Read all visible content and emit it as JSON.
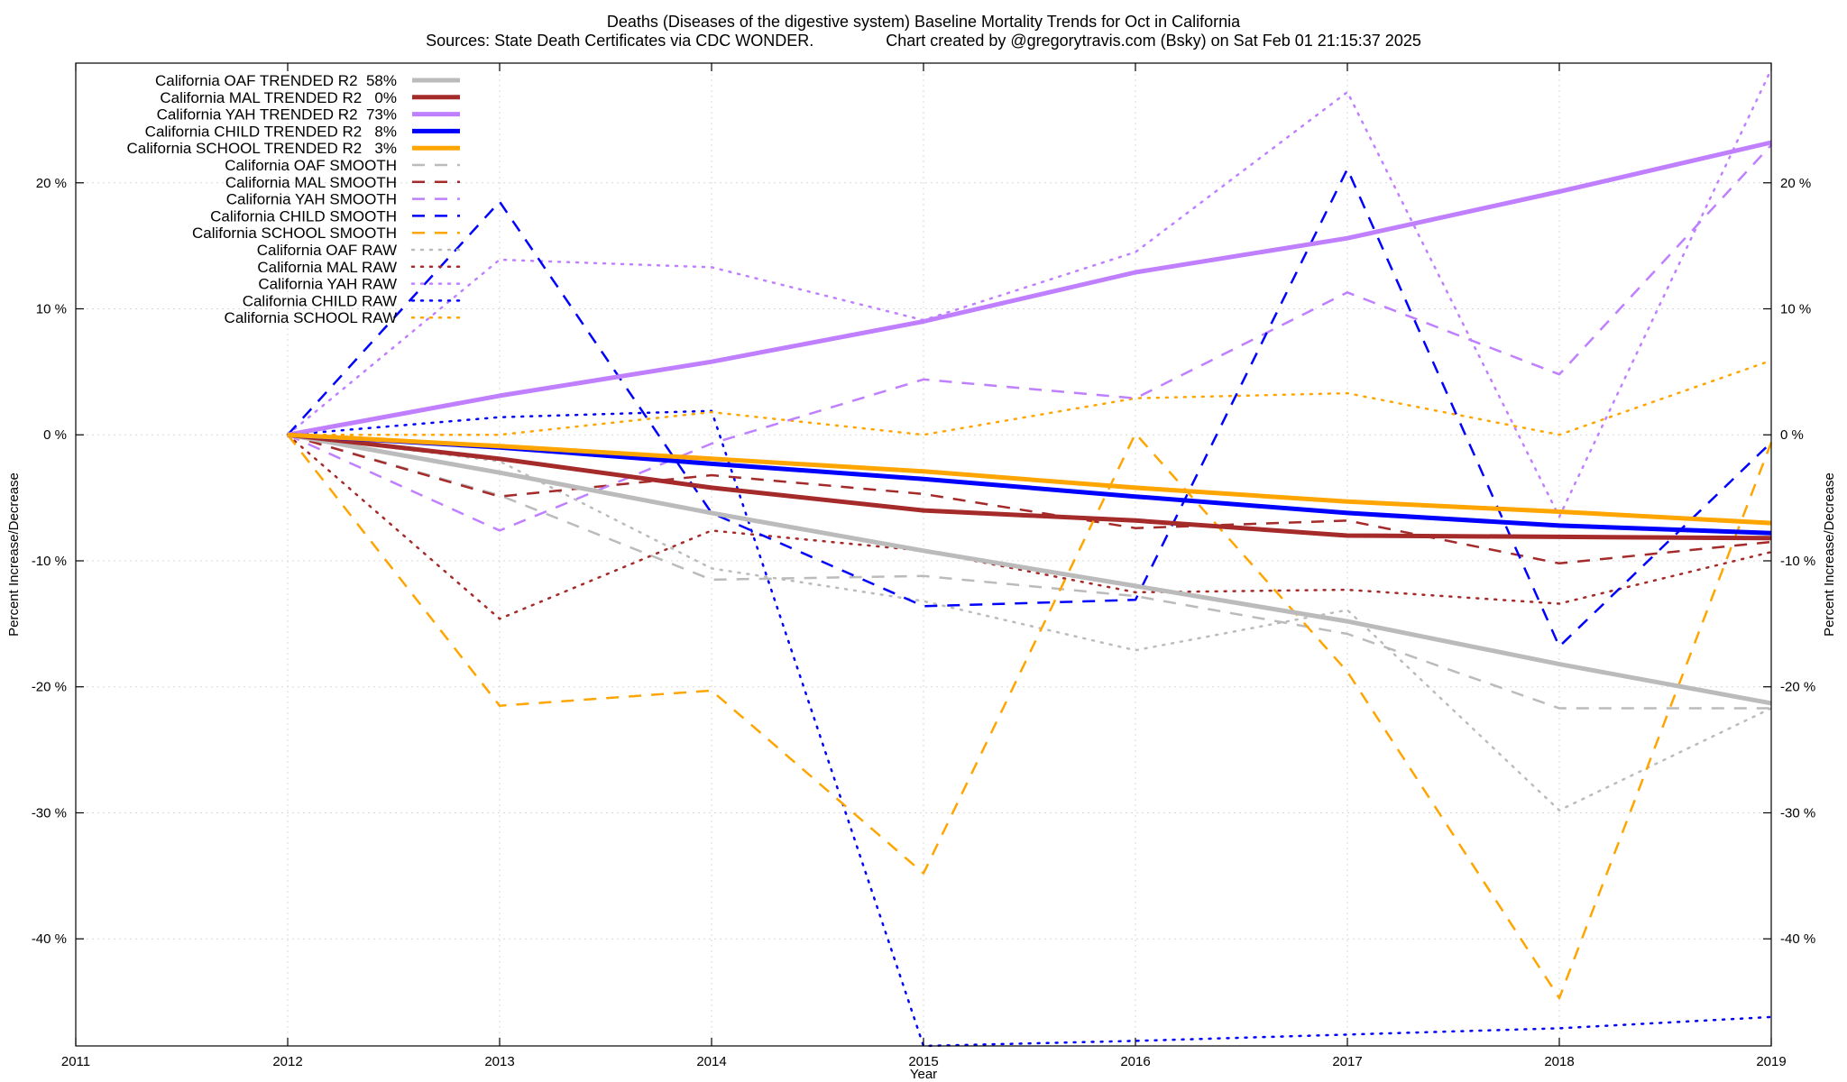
{
  "chart_data": {
    "type": "line",
    "title": "Deaths (Diseases of the digestive system)  Baseline Mortality Trends for Oct in California",
    "subtitle": "Sources: State Death Certificates via CDC WONDER.                Chart created by @gregorytravis.com (Bsky) on Sat Feb 01 21:15:37 2025",
    "xlabel": "Year",
    "ylabel": "Percent Increase/Decrease",
    "ylabel_right": "Percent Increase/Decrease",
    "xlim": [
      2011,
      2019
    ],
    "ylim": [
      -48.5,
      29.5
    ],
    "x_ticks": [
      2011,
      2012,
      2013,
      2014,
      2015,
      2016,
      2017,
      2018,
      2019
    ],
    "y_ticks": [
      {
        "value": 20,
        "label": "20 %"
      },
      {
        "value": 10,
        "label": "10 %"
      },
      {
        "value": 0,
        "label": "0 %"
      },
      {
        "value": -10,
        "label": "-10 %"
      },
      {
        "value": -20,
        "label": "-20 %"
      },
      {
        "value": -30,
        "label": "-30 %"
      },
      {
        "value": -40,
        "label": "-40 %"
      }
    ],
    "grid": true,
    "legend_position": "top-left",
    "series": [
      {
        "name": "California OAF TRENDED R2  58%",
        "color": "#bbbbbb",
        "style": "solid",
        "width": 5,
        "x": [
          2012,
          2013,
          2014,
          2015,
          2016,
          2017,
          2018,
          2019
        ],
        "y": [
          0,
          -3.0,
          -6.2,
          -9.2,
          -12.0,
          -14.8,
          -18.2,
          -21.3
        ]
      },
      {
        "name": "California MAL TRENDED R2   0%",
        "color": "#a52a2a",
        "style": "solid",
        "width": 5,
        "x": [
          2012,
          2013,
          2014,
          2015,
          2016,
          2017,
          2018,
          2019
        ],
        "y": [
          0,
          -1.9,
          -4.2,
          -6.0,
          -6.8,
          -8.0,
          -8.1,
          -8.2
        ]
      },
      {
        "name": "California YAH TRENDED R2  73%",
        "color": "#bf7fff",
        "style": "solid",
        "width": 5,
        "x": [
          2012,
          2013,
          2014,
          2015,
          2016,
          2017,
          2018,
          2019
        ],
        "y": [
          0,
          3.1,
          5.8,
          9.0,
          12.9,
          15.6,
          19.3,
          23.2
        ]
      },
      {
        "name": "California CHILD TRENDED R2   8%",
        "color": "#0000ff",
        "style": "solid",
        "width": 5,
        "x": [
          2012,
          2013,
          2014,
          2015,
          2016,
          2017,
          2018,
          2019
        ],
        "y": [
          0,
          -1.0,
          -2.3,
          -3.5,
          -4.9,
          -6.2,
          -7.2,
          -7.8
        ]
      },
      {
        "name": "California SCHOOL TRENDED R2   3%",
        "color": "#ffa500",
        "style": "solid",
        "width": 5,
        "x": [
          2012,
          2013,
          2014,
          2015,
          2016,
          2017,
          2018,
          2019
        ],
        "y": [
          0,
          -0.9,
          -1.9,
          -2.9,
          -4.2,
          -5.3,
          -6.1,
          -7.0
        ]
      },
      {
        "name": "California OAF SMOOTH",
        "color": "#bbbbbb",
        "style": "dashed",
        "width": 2.5,
        "x": [
          2012,
          2013,
          2014,
          2015,
          2016,
          2017,
          2018,
          2019
        ],
        "y": [
          0,
          -4.8,
          -11.5,
          -11.2,
          -12.8,
          -15.8,
          -21.7,
          -21.7
        ]
      },
      {
        "name": "California MAL SMOOTH",
        "color": "#a52a2a",
        "style": "dashed",
        "width": 2.5,
        "x": [
          2012,
          2013,
          2014,
          2015,
          2016,
          2017,
          2018,
          2019
        ],
        "y": [
          0,
          -4.9,
          -3.2,
          -4.7,
          -7.4,
          -6.8,
          -10.2,
          -8.5
        ]
      },
      {
        "name": "California YAH SMOOTH",
        "color": "#bf7fff",
        "style": "dashed",
        "width": 2.5,
        "x": [
          2012,
          2013,
          2014,
          2015,
          2016,
          2017,
          2018,
          2019
        ],
        "y": [
          0,
          -7.6,
          -0.7,
          4.4,
          2.9,
          11.3,
          4.8,
          23.0
        ]
      },
      {
        "name": "California CHILD SMOOTH",
        "color": "#0000ff",
        "style": "dashed",
        "width": 2.5,
        "x": [
          2012,
          2013,
          2014,
          2015,
          2016,
          2017,
          2018,
          2019
        ],
        "y": [
          0,
          18.5,
          -6.2,
          -13.6,
          -13.1,
          21.1,
          -16.8,
          -0.6
        ]
      },
      {
        "name": "California SCHOOL SMOOTH",
        "color": "#ffa500",
        "style": "dashed",
        "width": 2.5,
        "x": [
          2012,
          2013,
          2014,
          2015,
          2016,
          2017,
          2018,
          2019
        ],
        "y": [
          0,
          -21.5,
          -20.3,
          -34.8,
          0.1,
          -18.8,
          -44.7,
          -0.6
        ]
      },
      {
        "name": "California OAF RAW",
        "color": "#bbbbbb",
        "style": "dotted",
        "width": 2.5,
        "x": [
          2012,
          2013,
          2014,
          2015,
          2016,
          2017,
          2018,
          2019
        ],
        "y": [
          0,
          -2.1,
          -10.6,
          -13.2,
          -17.1,
          -13.9,
          -29.8,
          -21.7
        ]
      },
      {
        "name": "California MAL RAW",
        "color": "#a52a2a",
        "style": "dotted",
        "width": 2.5,
        "x": [
          2012,
          2013,
          2014,
          2015,
          2016,
          2017,
          2018,
          2019
        ],
        "y": [
          0,
          -14.6,
          -7.6,
          -9.2,
          -12.5,
          -12.3,
          -13.4,
          -9.3
        ]
      },
      {
        "name": "California YAH RAW",
        "color": "#bf7fff",
        "style": "dotted",
        "width": 2.5,
        "x": [
          2012,
          2013,
          2014,
          2015,
          2016,
          2017,
          2018,
          2019
        ],
        "y": [
          0,
          13.9,
          13.3,
          9.1,
          14.5,
          27.2,
          -6.5,
          29.0
        ]
      },
      {
        "name": "California CHILD RAW",
        "color": "#0000ff",
        "style": "dotted",
        "width": 2.5,
        "x": [
          2012,
          2013,
          2014,
          2015,
          2016,
          2017,
          2018,
          2019
        ],
        "y": [
          0,
          1.4,
          1.9,
          -48.5,
          -48.1,
          -47.6,
          -47.1,
          -46.2
        ]
      },
      {
        "name": "California SCHOOL RAW",
        "color": "#ffa500",
        "style": "dotted",
        "width": 2.5,
        "x": [
          2012,
          2013,
          2014,
          2015,
          2016,
          2017,
          2018,
          2019
        ],
        "y": [
          0,
          0.0,
          1.8,
          0.0,
          2.9,
          3.3,
          0.0,
          5.9
        ]
      }
    ]
  }
}
